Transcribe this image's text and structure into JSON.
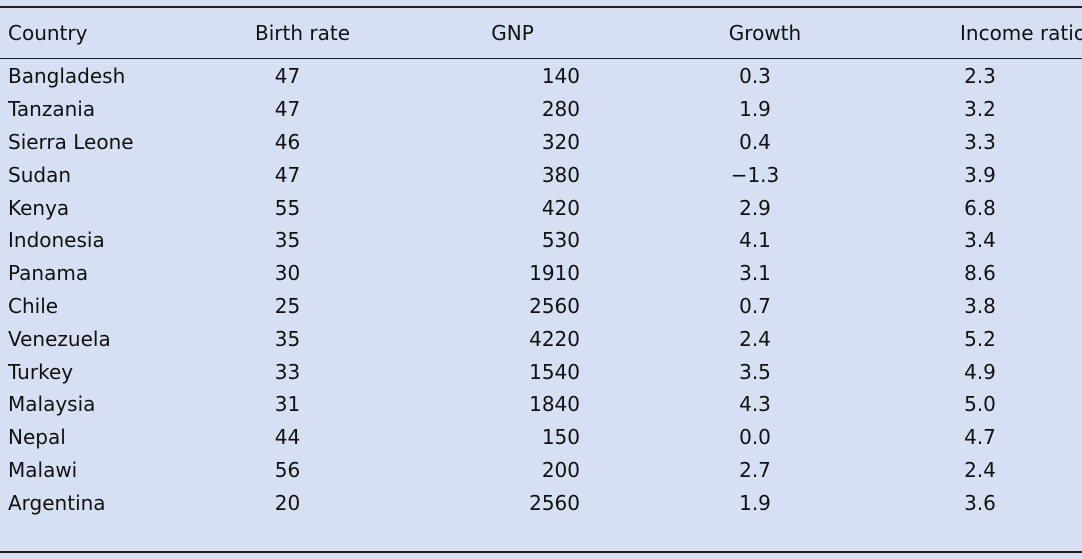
{
  "table": {
    "headers": [
      "Country",
      "Birth rate",
      "GNP",
      "Growth",
      "Income ratio"
    ],
    "rows": [
      [
        "Bangladesh",
        "47",
        "140",
        "0.3",
        "2.3"
      ],
      [
        "Tanzania",
        "47",
        "280",
        "1.9",
        "3.2"
      ],
      [
        "Sierra Leone",
        "46",
        "320",
        "0.4",
        "3.3"
      ],
      [
        "Sudan",
        "47",
        "380",
        "−1.3",
        "3.9"
      ],
      [
        "Kenya",
        "55",
        "420",
        "2.9",
        "6.8"
      ],
      [
        "Indonesia",
        "35",
        "530",
        "4.1",
        "3.4"
      ],
      [
        "Panama",
        "30",
        "1910",
        "3.1",
        "8.6"
      ],
      [
        "Chile",
        "25",
        "2560",
        "0.7",
        "3.8"
      ],
      [
        "Venezuela",
        "35",
        "4220",
        "2.4",
        "5.2"
      ],
      [
        "Turkey",
        "33",
        "1540",
        "3.5",
        "4.9"
      ],
      [
        "Malaysia",
        "31",
        "1840",
        "4.3",
        "5.0"
      ],
      [
        "Nepal",
        "44",
        "150",
        "0.0",
        "4.7"
      ],
      [
        "Malawi",
        "56",
        "200",
        "2.7",
        "2.4"
      ],
      [
        "Argentina",
        "20",
        "2560",
        "1.9",
        "3.6"
      ]
    ]
  },
  "colors": {
    "background": "#d6e0f2",
    "rule": "#222222",
    "text": "#111111"
  }
}
